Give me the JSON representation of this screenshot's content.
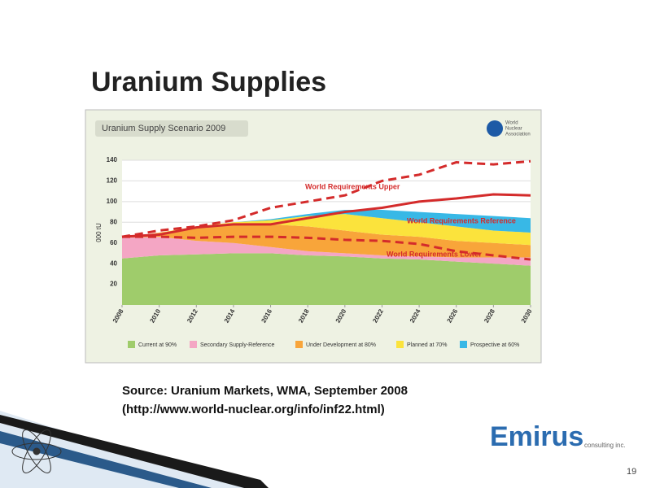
{
  "slide_title": "Uranium Supplies",
  "source": [
    "Source: Uranium Markets, WMA, September 2008",
    "(http://www.world-nuclear.org/info/inf22.html)"
  ],
  "logo": {
    "name": "Emirus",
    "tagline": "consulting inc."
  },
  "page_number": "19",
  "chart_data": {
    "type": "area",
    "title": "Uranium Supply Scenario 2009",
    "publisher": [
      "World",
      "Nuclear",
      "Association"
    ],
    "y_label": "000 tU",
    "x": [
      2008,
      2010,
      2012,
      2014,
      2016,
      2018,
      2020,
      2022,
      2024,
      2026,
      2028,
      2030
    ],
    "xlim": [
      2008,
      2030
    ],
    "xticks": [
      2008,
      2010,
      2012,
      2014,
      2016,
      2018,
      2020,
      2022,
      2024,
      2026,
      2028,
      2030
    ],
    "ylim": [
      0,
      140
    ],
    "yticks": [
      20,
      40,
      60,
      80,
      100,
      120,
      140
    ],
    "grid": true,
    "series": [
      {
        "name": "Current at 90%",
        "color": "#9fcc6b",
        "style": "area",
        "values": [
          45,
          48,
          49,
          50,
          50,
          48,
          47,
          45,
          44,
          42,
          40,
          38
        ]
      },
      {
        "name": "Secondary Supply-Reference",
        "color": "#f4a6c4",
        "style": "area",
        "values": [
          20,
          18,
          13,
          10,
          6,
          4,
          3,
          3,
          3,
          4,
          6,
          8
        ]
      },
      {
        "name": "Under Development at 80%",
        "color": "#f8a53a",
        "style": "area",
        "values": [
          0,
          4,
          13,
          18,
          22,
          24,
          22,
          20,
          19,
          16,
          14,
          12
        ]
      },
      {
        "name": "Planned at 70%",
        "color": "#fbe33c",
        "style": "area",
        "values": [
          0,
          0,
          1,
          2,
          4,
          10,
          16,
          16,
          14,
          14,
          12,
          12
        ]
      },
      {
        "name": "Prospective at 60%",
        "color": "#38b8e6",
        "style": "area",
        "values": [
          0,
          0,
          0,
          0,
          1,
          2,
          4,
          8,
          10,
          12,
          14,
          14
        ]
      },
      {
        "name": "World Requirements Upper",
        "color": "#d42b2b",
        "style": "dashed",
        "values": [
          66,
          72,
          76,
          82,
          94,
          100,
          106,
          120,
          126,
          138,
          136,
          139
        ]
      },
      {
        "name": "World Requirements Reference",
        "color": "#d42b2b",
        "style": "solid",
        "values": [
          66,
          68,
          75,
          78,
          78,
          84,
          90,
          94,
          100,
          103,
          107,
          106
        ]
      },
      {
        "name": "World Requirements Lower",
        "color": "#d42b2b",
        "style": "dashed",
        "values": [
          66,
          66,
          65,
          66,
          66,
          65,
          63,
          62,
          59,
          52,
          48,
          44
        ]
      }
    ]
  }
}
